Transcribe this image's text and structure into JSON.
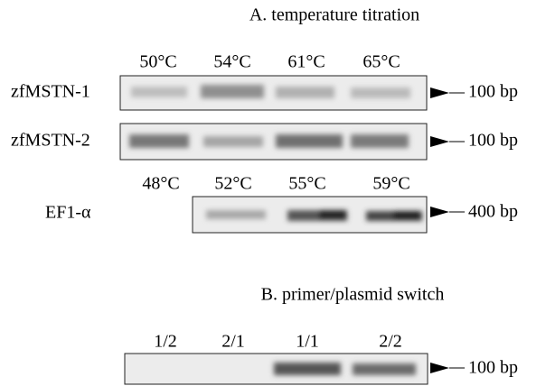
{
  "panel_a": {
    "title": "A. temperature titration",
    "lanes_top": [
      "50°C",
      "54°C",
      "61°C",
      "65°C"
    ],
    "rows": [
      {
        "label": "zfMSTN-1",
        "size": "100 bp"
      },
      {
        "label": "zfMSTN-2",
        "size": "100 bp"
      }
    ],
    "ef1": {
      "lanes": [
        "48°C",
        "52°C",
        "55°C",
        "59°C"
      ],
      "label": "EF1-α",
      "size": "400 bp"
    }
  },
  "panel_b": {
    "title": "B. primer/plasmid switch",
    "lanes": [
      "1/2",
      "2/1",
      "1/1",
      "2/2"
    ],
    "size": "100 bp"
  }
}
